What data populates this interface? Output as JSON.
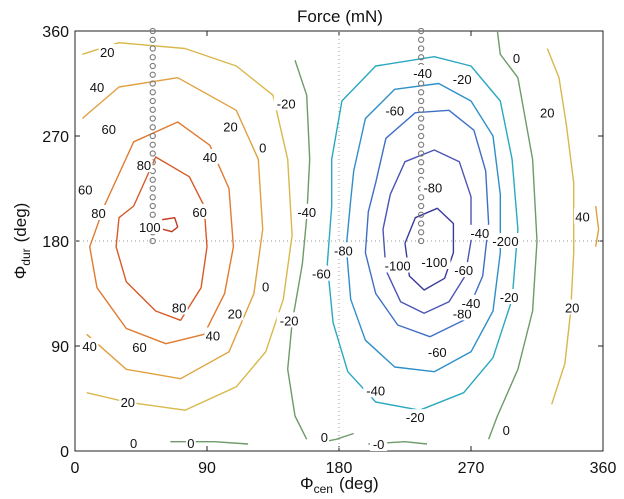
{
  "chart_data": {
    "type": "contour",
    "title": "Force (mN)",
    "xlabel": {
      "main": "Φ",
      "sub": "cen",
      "unit": "(deg)"
    },
    "ylabel": {
      "main": "Φ",
      "sub": "dur",
      "unit": "(deg)"
    },
    "xlim": [
      0,
      360
    ],
    "ylim": [
      0,
      360
    ],
    "xticks": [
      0,
      90,
      180,
      270,
      360
    ],
    "yticks": [
      0,
      90,
      180,
      270,
      360
    ],
    "grid": false,
    "reference_lines": {
      "x": [
        180
      ],
      "y": [
        180
      ]
    },
    "point_columns": [
      {
        "x": 53,
        "y_from": 180,
        "y_to": 360,
        "step": 7.5
      },
      {
        "x": 236,
        "y_from": 180,
        "y_to": 360,
        "step": 7.5
      }
    ],
    "levels": [
      -100,
      -80,
      -60,
      -40,
      -20,
      0,
      20,
      40,
      60,
      80,
      100
    ],
    "level_colors": {
      "-100": "#3a3a9a",
      "-80": "#4a55b5",
      "-60": "#3f6fc4",
      "-40": "#2f8fc8",
      "-20": "#2aa8c0",
      "0": "#6f9a6a",
      "20": "#d8b84a",
      "40": "#e0a040",
      "60": "#e07a30",
      "80": "#d85a28",
      "100": "#c03a20"
    },
    "contours": [
      {
        "level": 100,
        "points": [
          [
            58,
            198
          ],
          [
            68,
            200
          ],
          [
            70,
            192
          ],
          [
            66,
            188
          ],
          [
            60,
            190
          ]
        ]
      },
      {
        "level": 80,
        "points": [
          [
            40,
            210
          ],
          [
            55,
            252
          ],
          [
            78,
            235
          ],
          [
            88,
            210
          ],
          [
            90,
            175
          ],
          [
            86,
            140
          ],
          [
            72,
            112
          ],
          [
            55,
            120
          ],
          [
            35,
            145
          ],
          [
            28,
            175
          ],
          [
            30,
            200
          ],
          [
            40,
            210
          ]
        ]
      },
      {
        "level": 60,
        "points": [
          [
            20,
            210
          ],
          [
            40,
            265
          ],
          [
            70,
            282
          ],
          [
            92,
            262
          ],
          [
            105,
            225
          ],
          [
            108,
            175
          ],
          [
            102,
            135
          ],
          [
            88,
            100
          ],
          [
            62,
            92
          ],
          [
            35,
            105
          ],
          [
            15,
            140
          ],
          [
            10,
            175
          ],
          [
            20,
            210
          ]
        ]
      },
      {
        "level": 40,
        "points": [
          [
            5,
            285
          ],
          [
            30,
            312
          ],
          [
            70,
            320
          ],
          [
            110,
            292
          ],
          [
            125,
            250
          ],
          [
            128,
            190
          ],
          [
            122,
            135
          ],
          [
            105,
            85
          ],
          [
            72,
            62
          ],
          [
            35,
            70
          ],
          [
            8,
            100
          ]
        ]
      },
      {
        "level": 20,
        "points": [
          [
            5,
            340
          ],
          [
            30,
            350
          ],
          [
            75,
            345
          ],
          [
            110,
            330
          ],
          [
            135,
            305
          ],
          [
            145,
            250
          ],
          [
            148,
            185
          ],
          [
            142,
            130
          ],
          [
            130,
            85
          ],
          [
            110,
            55
          ],
          [
            75,
            35
          ],
          [
            35,
            42
          ],
          [
            8,
            50
          ]
        ]
      },
      {
        "level": 0,
        "points": [
          [
            150,
            335
          ],
          [
            158,
            305
          ],
          [
            160,
            250
          ],
          [
            158,
            200
          ],
          [
            155,
            160
          ],
          [
            148,
            110
          ],
          [
            145,
            70
          ],
          [
            150,
            30
          ],
          [
            158,
            10
          ]
        ]
      },
      {
        "level": 0,
        "points": [
          [
            288,
            360
          ],
          [
            290,
            340
          ],
          [
            302,
            320
          ],
          [
            312,
            250
          ],
          [
            315,
            180
          ],
          [
            312,
            120
          ],
          [
            302,
            70
          ],
          [
            288,
            30
          ],
          [
            282,
            10
          ]
        ]
      },
      {
        "level": 0,
        "points": [
          [
            190,
            15
          ],
          [
            178,
            10
          ],
          [
            170,
            8
          ]
        ]
      },
      {
        "level": 0,
        "points": [
          [
            65,
            8
          ],
          [
            95,
            8
          ],
          [
            118,
            6
          ]
        ]
      },
      {
        "level": 0,
        "points": [
          [
            200,
            6
          ],
          [
            225,
            8
          ],
          [
            240,
            6
          ]
        ]
      },
      {
        "level": -20,
        "points": [
          [
            175,
            250
          ],
          [
            182,
            300
          ],
          [
            205,
            330
          ],
          [
            245,
            338
          ],
          [
            270,
            330
          ],
          [
            290,
            300
          ],
          [
            298,
            250
          ],
          [
            302,
            190
          ],
          [
            298,
            130
          ],
          [
            285,
            80
          ],
          [
            265,
            50
          ],
          [
            235,
            35
          ],
          [
            205,
            42
          ],
          [
            186,
            68
          ],
          [
            176,
            110
          ],
          [
            172,
            160
          ],
          [
            175,
            210
          ],
          [
            175,
            250
          ]
        ]
      },
      {
        "level": -40,
        "points": [
          [
            190,
            240
          ],
          [
            198,
            285
          ],
          [
            218,
            310
          ],
          [
            248,
            315
          ],
          [
            270,
            300
          ],
          [
            285,
            270
          ],
          [
            290,
            220
          ],
          [
            290,
            170
          ],
          [
            285,
            120
          ],
          [
            270,
            85
          ],
          [
            245,
            68
          ],
          [
            218,
            72
          ],
          [
            198,
            95
          ],
          [
            188,
            130
          ],
          [
            185,
            175
          ],
          [
            188,
            215
          ],
          [
            190,
            240
          ]
        ]
      },
      {
        "level": -60,
        "points": [
          [
            205,
            230
          ],
          [
            212,
            268
          ],
          [
            232,
            290
          ],
          [
            255,
            292
          ],
          [
            272,
            275
          ],
          [
            280,
            240
          ],
          [
            282,
            195
          ],
          [
            278,
            150
          ],
          [
            265,
            112
          ],
          [
            242,
            98
          ],
          [
            220,
            108
          ],
          [
            205,
            135
          ],
          [
            198,
            170
          ],
          [
            200,
            205
          ],
          [
            205,
            230
          ]
        ]
      },
      {
        "level": -80,
        "points": [
          [
            215,
            220
          ],
          [
            225,
            248
          ],
          [
            245,
            258
          ],
          [
            262,
            248
          ],
          [
            270,
            218
          ],
          [
            270,
            180
          ],
          [
            266,
            150
          ],
          [
            255,
            128
          ],
          [
            238,
            118
          ],
          [
            222,
            128
          ],
          [
            212,
            155
          ],
          [
            210,
            190
          ],
          [
            215,
            220
          ]
        ]
      },
      {
        "level": -100,
        "points": [
          [
            225,
            178
          ],
          [
            232,
            200
          ],
          [
            247,
            208
          ],
          [
            258,
            195
          ],
          [
            258,
            170
          ],
          [
            252,
            148
          ],
          [
            238,
            138
          ],
          [
            228,
            150
          ],
          [
            225,
            178
          ]
        ]
      },
      {
        "level": 20,
        "points": [
          [
            322,
            345
          ],
          [
            330,
            320
          ],
          [
            335,
            280
          ],
          [
            340,
            230
          ],
          [
            340,
            170
          ],
          [
            338,
            120
          ],
          [
            334,
            75
          ],
          [
            325,
            40
          ]
        ]
      },
      {
        "level": 40,
        "points": [
          [
            355,
            210
          ],
          [
            357,
            190
          ],
          [
            355,
            175
          ]
        ]
      }
    ],
    "labels": [
      {
        "text": "20",
        "x": 22,
        "y": 342
      },
      {
        "text": "40",
        "x": 15,
        "y": 312
      },
      {
        "text": "60",
        "x": 23,
        "y": 276
      },
      {
        "text": "80",
        "x": 47,
        "y": 245
      },
      {
        "text": "60",
        "x": 7,
        "y": 224
      },
      {
        "text": "80",
        "x": 16,
        "y": 204
      },
      {
        "text": "100",
        "x": 51,
        "y": 192
      },
      {
        "text": "60",
        "x": 85,
        "y": 205
      },
      {
        "text": "40",
        "x": 92,
        "y": 252
      },
      {
        "text": "20",
        "x": 106,
        "y": 278
      },
      {
        "text": "20",
        "x": 109,
        "y": 118
      },
      {
        "text": "40",
        "x": 94,
        "y": 99
      },
      {
        "text": "80",
        "x": 71,
        "y": 123
      },
      {
        "text": "60",
        "x": 44,
        "y": 89
      },
      {
        "text": "40",
        "x": 10,
        "y": 90
      },
      {
        "text": "20",
        "x": 36,
        "y": 42
      },
      {
        "text": "0",
        "x": 128,
        "y": 260
      },
      {
        "text": "0",
        "x": 130,
        "y": 141
      },
      {
        "text": "0",
        "x": 170,
        "y": 12
      },
      {
        "text": "0",
        "x": 40,
        "y": 7
      },
      {
        "text": "0",
        "x": 79,
        "y": 7
      },
      {
        "text": "-20",
        "x": 144,
        "y": 298
      },
      {
        "text": "-40",
        "x": 237,
        "y": 324
      },
      {
        "text": "-20",
        "x": 264,
        "y": 319
      },
      {
        "text": "-60",
        "x": 218,
        "y": 292
      },
      {
        "text": "-80",
        "x": 244,
        "y": 226
      },
      {
        "text": "-40",
        "x": 158,
        "y": 205
      },
      {
        "text": "-80",
        "x": 183,
        "y": 172
      },
      {
        "text": "-60",
        "x": 168,
        "y": 152
      },
      {
        "text": "-100",
        "x": 220,
        "y": 159
      },
      {
        "text": "-100",
        "x": 245,
        "y": 162
      },
      {
        "text": "-40",
        "x": 276,
        "y": 187
      },
      {
        "text": "-20",
        "x": 291,
        "y": 180
      },
      {
        "text": "-60",
        "x": 265,
        "y": 155
      },
      {
        "text": "-80",
        "x": 264,
        "y": 118
      },
      {
        "text": "-40",
        "x": 270,
        "y": 127
      },
      {
        "text": "-20",
        "x": 296,
        "y": 132
      },
      {
        "text": "-60",
        "x": 247,
        "y": 85
      },
      {
        "text": "-20",
        "x": 146,
        "y": 112
      },
      {
        "text": "-40",
        "x": 205,
        "y": 52
      },
      {
        "text": "-20",
        "x": 232,
        "y": 29
      },
      {
        "text": "-0",
        "x": 207,
        "y": 6
      },
      {
        "text": "0",
        "x": 300,
        "y": 180
      },
      {
        "text": "0",
        "x": 294,
        "y": 18
      },
      {
        "text": "0",
        "x": 301,
        "y": 337
      },
      {
        "text": "20",
        "x": 322,
        "y": 290
      },
      {
        "text": "40",
        "x": 346,
        "y": 201
      },
      {
        "text": "20",
        "x": 339,
        "y": 123
      }
    ]
  }
}
